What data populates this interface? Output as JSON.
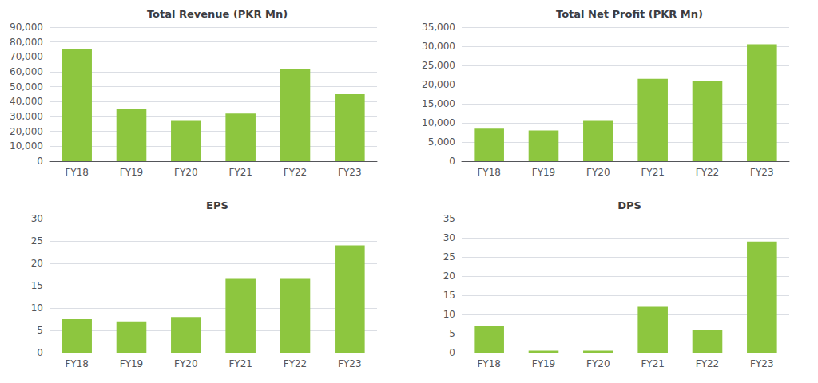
{
  "chart_data": [
    {
      "type": "bar",
      "title": "Total Revenue (PKR Mn)",
      "categories": [
        "FY18",
        "FY19",
        "FY20",
        "FY21",
        "FY22",
        "FY23"
      ],
      "values": [
        75000,
        35000,
        27000,
        32000,
        62000,
        45000
      ],
      "color": "#8DC63F",
      "ylim": [
        0,
        90000
      ],
      "yticks": [
        0,
        {
          "value": 10000,
          "label": "10,000"
        },
        {
          "value": 20000,
          "label": "20,000"
        },
        {
          "value": 30000,
          "label": "30,000"
        },
        {
          "value": 40000,
          "label": "40,000"
        },
        {
          "value": 50000,
          "label": "50,000"
        },
        {
          "value": 60000,
          "label": "60,000"
        },
        {
          "value": 70000,
          "label": "70,000"
        },
        {
          "value": 80000,
          "label": "80,000"
        },
        {
          "value": 90000,
          "label": "90,000"
        }
      ],
      "grid": true
    },
    {
      "type": "bar",
      "title": "Total Net Profit (PKR Mn)",
      "categories": [
        "FY18",
        "FY19",
        "FY20",
        "FY21",
        "FY22",
        "FY23"
      ],
      "values": [
        8500,
        8000,
        10500,
        21500,
        21000,
        30500
      ],
      "color": "#8DC63F",
      "ylim": [
        0,
        35000
      ],
      "yticks": [
        0,
        {
          "value": 5000,
          "label": "5,000"
        },
        {
          "value": 10000,
          "label": "10,000"
        },
        {
          "value": 15000,
          "label": "15,000"
        },
        {
          "value": 20000,
          "label": "20,000"
        },
        {
          "value": 25000,
          "label": "25,000"
        },
        {
          "value": 30000,
          "label": "30,000"
        },
        {
          "value": 35000,
          "label": "35,000"
        }
      ],
      "grid": true
    },
    {
      "type": "bar",
      "title": "EPS",
      "categories": [
        "FY18",
        "FY19",
        "FY20",
        "FY21",
        "FY22",
        "FY23"
      ],
      "values": [
        7.5,
        7.0,
        8.0,
        16.5,
        16.5,
        24.0
      ],
      "color": "#8DC63F",
      "ylim": [
        0,
        30
      ],
      "yticks": [
        0,
        5,
        10,
        15,
        20,
        25,
        30
      ],
      "grid": true
    },
    {
      "type": "bar",
      "title": "DPS",
      "categories": [
        "FY18",
        "FY19",
        "FY20",
        "FY21",
        "FY22",
        "FY23"
      ],
      "values": [
        7.0,
        0.5,
        0.5,
        12.0,
        6.0,
        29.0
      ],
      "color": "#8DC63F",
      "ylim": [
        0,
        35
      ],
      "yticks": [
        0,
        5,
        10,
        15,
        20,
        25,
        30,
        35
      ],
      "grid": true
    }
  ]
}
